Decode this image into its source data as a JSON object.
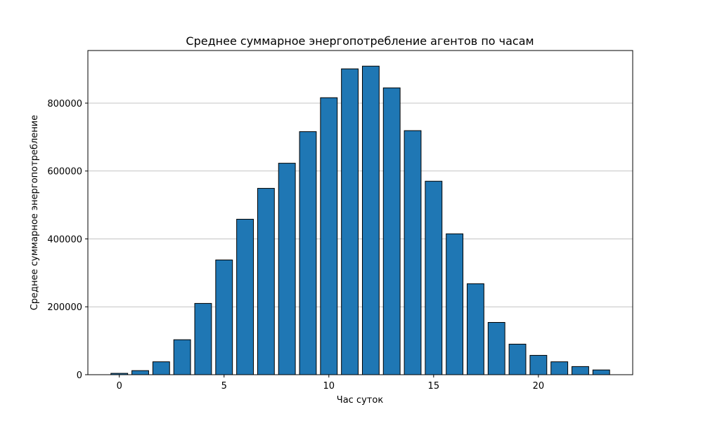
{
  "chart_data": {
    "type": "bar",
    "title": "Среднее суммарное энергопотребление агентов по часам",
    "xlabel": "Час суток",
    "ylabel": "Среднее суммарное энергопотребление",
    "x": [
      0,
      1,
      2,
      3,
      4,
      5,
      6,
      7,
      8,
      9,
      10,
      11,
      12,
      13,
      14,
      15,
      16,
      17,
      18,
      19,
      20,
      21,
      22,
      23
    ],
    "values": [
      4000,
      12000,
      38000,
      103000,
      210000,
      338000,
      458000,
      549000,
      623000,
      716000,
      816000,
      901000,
      909000,
      845000,
      719000,
      570000,
      415000,
      268000,
      154000,
      90000,
      57000,
      38000,
      24000,
      14000
    ],
    "xlim": [
      -1.5,
      24.5
    ],
    "ylim": [
      0,
      955000
    ],
    "xticks": [
      0,
      5,
      10,
      15,
      20
    ],
    "xtick_labels": [
      "0",
      "5",
      "10",
      "15",
      "20"
    ],
    "yticks": [
      0,
      200000,
      400000,
      600000,
      800000
    ],
    "ytick_labels": [
      "0",
      "200000",
      "400000",
      "600000",
      "800000"
    ],
    "grid": "y",
    "bar_color": "#1f77b4",
    "edge_color": "#000000"
  }
}
